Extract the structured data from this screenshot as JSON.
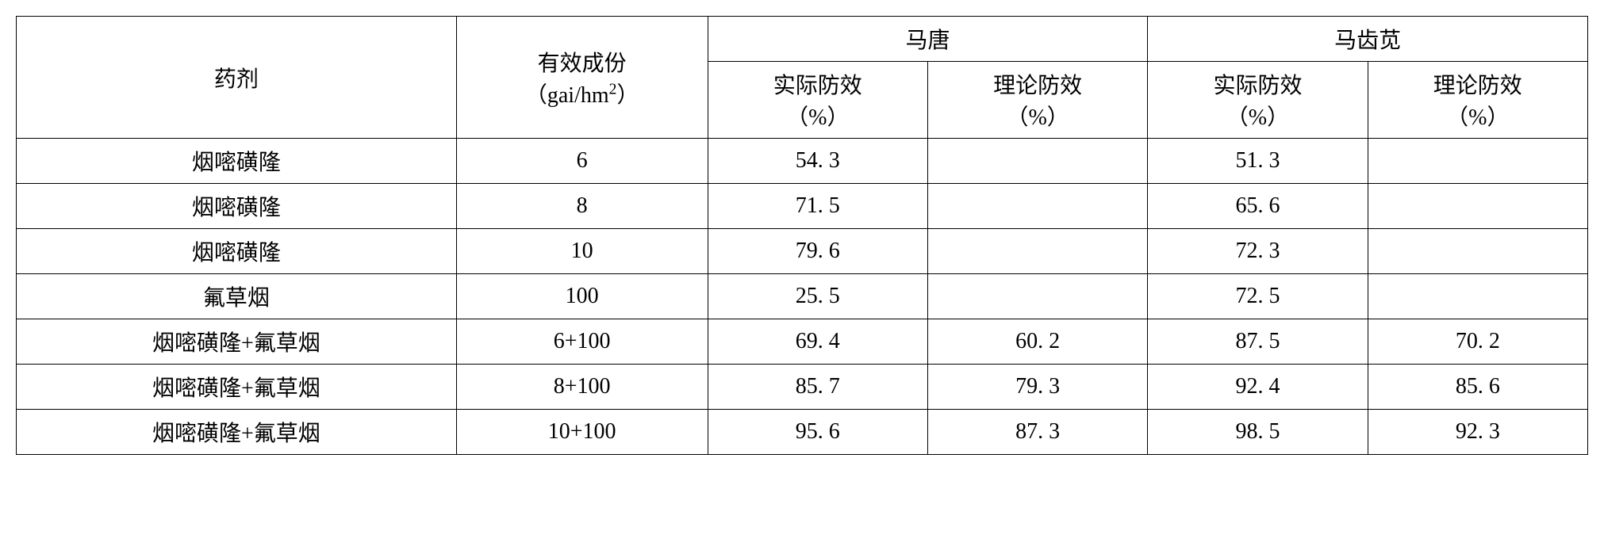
{
  "table": {
    "header": {
      "agent": "药剂",
      "dose_line1": "有效成份",
      "dose_line2_prefix": "（gai/hm",
      "dose_line2_sup": "2",
      "dose_line2_suffix": "）",
      "group1": "马唐",
      "group2": "马齿苋",
      "actual_line1": "实际防效",
      "actual_line2": "（%）",
      "theory_line1": "理论防效",
      "theory_line2": "（%）"
    },
    "rows": [
      {
        "agent": "烟嘧磺隆",
        "dose": "6",
        "g1_actual": "54. 3",
        "g1_theory": "",
        "g2_actual": "51. 3",
        "g2_theory": ""
      },
      {
        "agent": "烟嘧磺隆",
        "dose": "8",
        "g1_actual": "71. 5",
        "g1_theory": "",
        "g2_actual": "65. 6",
        "g2_theory": ""
      },
      {
        "agent": "烟嘧磺隆",
        "dose": "10",
        "g1_actual": "79. 6",
        "g1_theory": "",
        "g2_actual": "72. 3",
        "g2_theory": ""
      },
      {
        "agent": "氟草烟",
        "dose": "100",
        "g1_actual": "25. 5",
        "g1_theory": "",
        "g2_actual": "72. 5",
        "g2_theory": ""
      },
      {
        "agent": "烟嘧磺隆+氟草烟",
        "dose": "6+100",
        "g1_actual": "69. 4",
        "g1_theory": "60. 2",
        "g2_actual": "87. 5",
        "g2_theory": "70. 2"
      },
      {
        "agent": "烟嘧磺隆+氟草烟",
        "dose": "8+100",
        "g1_actual": "85. 7",
        "g1_theory": "79. 3",
        "g2_actual": "92. 4",
        "g2_theory": "85. 6"
      },
      {
        "agent": "烟嘧磺隆+氟草烟",
        "dose": "10+100",
        "g1_actual": "95. 6",
        "g1_theory": "87. 3",
        "g2_actual": "98. 5",
        "g2_theory": "92. 3"
      }
    ]
  },
  "style": {
    "border_color": "#000000",
    "background_color": "#ffffff",
    "text_color": "#000000",
    "font_size_pt": 28
  }
}
